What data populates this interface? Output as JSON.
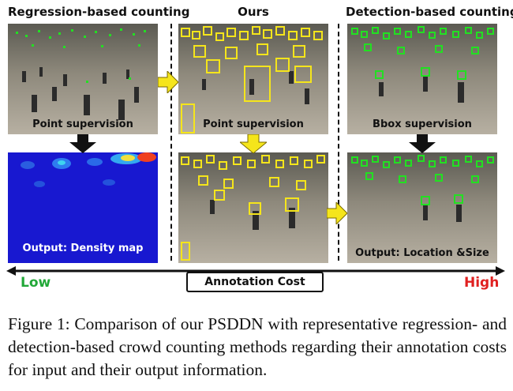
{
  "columns": {
    "regression": {
      "title": "Regression-based counting",
      "input_label": "Point supervision",
      "output_label": "Output: Density map"
    },
    "ours": {
      "title": "Ours",
      "input_label": "Point supervision"
    },
    "detection": {
      "title": "Detection-based counting",
      "input_label": "Bbox supervision",
      "output_label": "Output: Location &Size"
    }
  },
  "cost_axis": {
    "label": "Annotation Cost",
    "low": "Low",
    "high": "High"
  },
  "caption": "Figure 1:  Comparison of our PSDDN with representative regression- and detection-based crowd counting methods regarding their annotation costs for input and their output information.",
  "colors": {
    "green_box": "#22e022",
    "yellow_box": "#f5e51b",
    "low": "#22a838",
    "high": "#e02020",
    "density_bg": "#1a1ad6"
  }
}
